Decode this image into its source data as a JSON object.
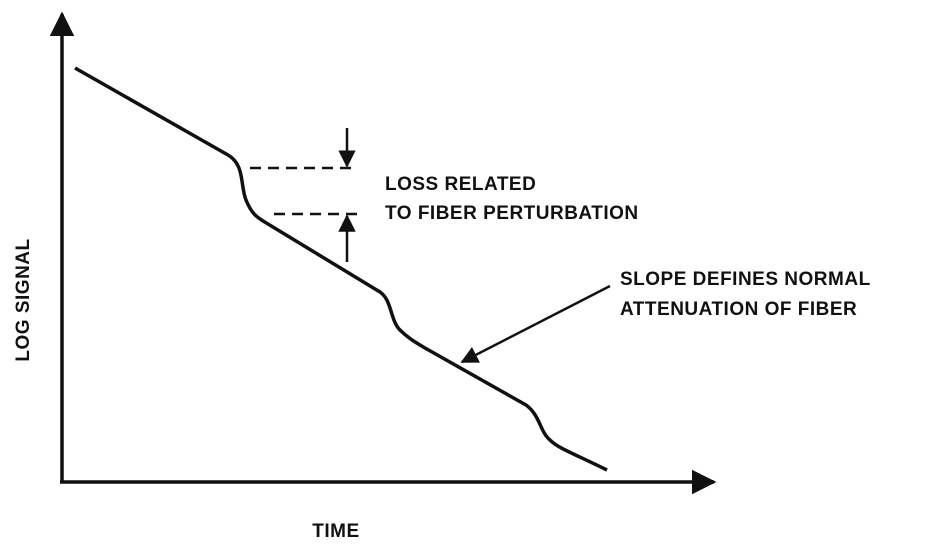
{
  "diagram": {
    "y_axis_label": "LOG SIGNAL",
    "x_axis_label": "TIME",
    "annotations": [
      {
        "lines": [
          "LOSS RELATED",
          "TO FIBER PERTURBATION"
        ]
      },
      {
        "lines": [
          "SLOPE DEFINES NORMAL",
          "ATTENUATION OF FIBER"
        ]
      }
    ]
  }
}
